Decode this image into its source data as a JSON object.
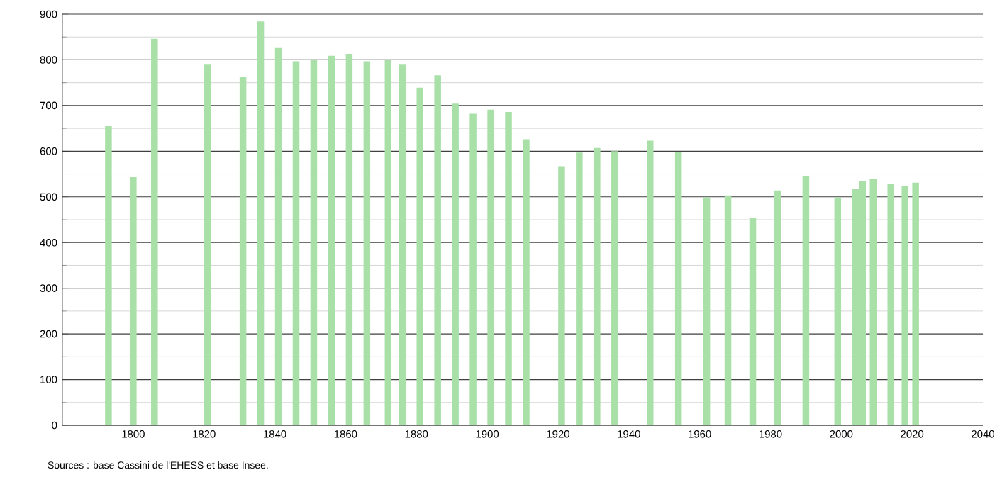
{
  "chart_data": {
    "type": "bar",
    "annotations": [
      "Sources : base Cassini de l'EHESS et base Insee."
    ],
    "x": [
      1793,
      1800,
      1806,
      1821,
      1831,
      1836,
      1841,
      1846,
      1851,
      1856,
      1861,
      1866,
      1872,
      1876,
      1881,
      1886,
      1891,
      1896,
      1901,
      1906,
      1911,
      1921,
      1926,
      1931,
      1936,
      1946,
      1954,
      1962,
      1968,
      1975,
      1982,
      1990,
      1999,
      2004,
      2006,
      2009,
      2014,
      2018,
      2021
    ],
    "values": [
      655,
      543,
      846,
      791,
      763,
      884,
      826,
      797,
      800,
      809,
      813,
      797,
      800,
      791,
      739,
      766,
      704,
      682,
      691,
      686,
      626,
      567,
      597,
      607,
      600,
      623,
      598,
      499,
      503,
      453,
      514,
      546,
      499,
      517,
      534,
      539,
      528,
      524,
      531
    ],
    "color": "#a8e0a8",
    "xlim": [
      1780,
      2040
    ],
    "ylim": [
      0,
      900
    ],
    "xticks": [
      1800,
      1820,
      1840,
      1860,
      1880,
      1900,
      1920,
      1940,
      1960,
      1980,
      2000,
      2020,
      2040
    ],
    "yticks": [
      0,
      100,
      200,
      300,
      400,
      500,
      600,
      700,
      800,
      900
    ],
    "grid": "y"
  }
}
